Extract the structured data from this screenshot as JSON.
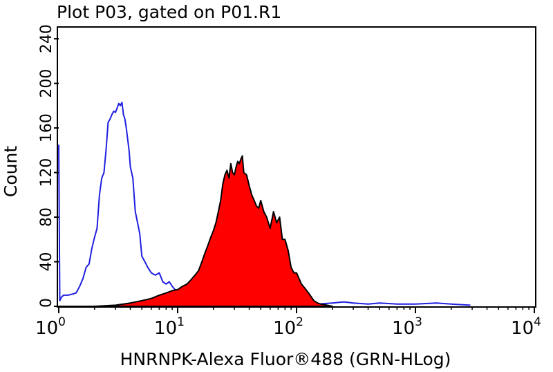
{
  "chart_data": {
    "type": "area",
    "title": "Plot P03, gated on P01.R1",
    "xlabel": "HNRNPK-Alexa Fluor®488 (GRN-HLog)",
    "ylabel": "Count",
    "x_scale": "log",
    "xlim": [
      1,
      10000
    ],
    "ylim": [
      0,
      250
    ],
    "y_ticks": [
      "0",
      "40",
      "80",
      "120",
      "160",
      "200",
      "240"
    ],
    "x_ticks": [
      {
        "base": "10",
        "exp": "0"
      },
      {
        "base": "10",
        "exp": "1"
      },
      {
        "base": "10",
        "exp": "2"
      },
      {
        "base": "10",
        "exp": "3"
      },
      {
        "base": "10",
        "exp": "4"
      }
    ],
    "series": [
      {
        "color": "#1f1fe0",
        "style": "line",
        "x": [
          1.0,
          1.02,
          1.05,
          1.1,
          1.2,
          1.3,
          1.4,
          1.5,
          1.6,
          1.7,
          1.8,
          1.9,
          2.0,
          2.1,
          2.2,
          2.3,
          2.4,
          2.5,
          2.6,
          2.7,
          2.8,
          2.9,
          3.0,
          3.1,
          3.2,
          3.3,
          3.4,
          3.5,
          3.6,
          3.7,
          3.8,
          3.9,
          4.0,
          4.2,
          4.4,
          4.6,
          4.8,
          5.0,
          5.3,
          5.6,
          6.0,
          6.5,
          7.0,
          7.5,
          8.0,
          8.5,
          9.0,
          9.5,
          10.0,
          11.0,
          12.0,
          13.0,
          14.0,
          16.0,
          18.0,
          20.0,
          25.0,
          30.0,
          40.0,
          60.0,
          100.0,
          150.0,
          200.0,
          250.0,
          300.0,
          400.0,
          500.0,
          700.0,
          1000.0,
          1500.0,
          2000.0,
          2900.0
        ],
        "values": [
          145,
          5,
          8,
          10,
          10,
          11,
          12,
          18,
          25,
          35,
          38,
          52,
          62,
          70,
          100,
          115,
          120,
          140,
          165,
          168,
          172,
          175,
          174,
          178,
          182,
          180,
          183,
          172,
          168,
          160,
          150,
          140,
          125,
          115,
          85,
          75,
          65,
          45,
          40,
          35,
          30,
          28,
          30,
          22,
          20,
          22,
          18,
          15,
          12,
          14,
          10,
          8,
          6,
          5,
          4,
          3,
          2,
          2,
          2,
          2,
          2,
          2,
          3,
          4,
          3,
          2,
          3,
          2,
          2,
          3,
          2,
          1
        ]
      },
      {
        "color": "#ff0000",
        "style": "filled",
        "x": [
          1.0,
          2.0,
          3.0,
          4.0,
          5.0,
          6.0,
          7.0,
          8.0,
          9.0,
          10.0,
          11.0,
          12.0,
          13.0,
          14.0,
          15.0,
          16.0,
          17.0,
          18.0,
          19.0,
          20.0,
          21.0,
          22.0,
          23.0,
          24.0,
          25.0,
          26.0,
          27.0,
          28.0,
          29.0,
          30.0,
          31.0,
          32.0,
          33.0,
          34.0,
          35.0,
          36.0,
          38.0,
          40.0,
          42.0,
          44.0,
          46.0,
          48.0,
          50.0,
          53.0,
          56.0,
          60.0,
          64.0,
          68.0,
          72.0,
          76.0,
          80.0,
          85.0,
          90.0,
          95.0,
          100.0,
          110.0,
          120.0,
          130.0,
          140.0,
          150.0,
          160.0,
          180.0,
          200.0
        ],
        "values": [
          0,
          0,
          1,
          3,
          5,
          7,
          10,
          12,
          14,
          15,
          18,
          20,
          24,
          28,
          32,
          40,
          48,
          55,
          62,
          68,
          75,
          85,
          95,
          110,
          118,
          122,
          115,
          128,
          120,
          118,
          125,
          130,
          128,
          132,
          135,
          120,
          118,
          108,
          100,
          95,
          90,
          88,
          95,
          85,
          80,
          70,
          85,
          75,
          80,
          60,
          60,
          50,
          35,
          30,
          30,
          20,
          15,
          10,
          5,
          3,
          2,
          1,
          0
        ]
      }
    ]
  }
}
